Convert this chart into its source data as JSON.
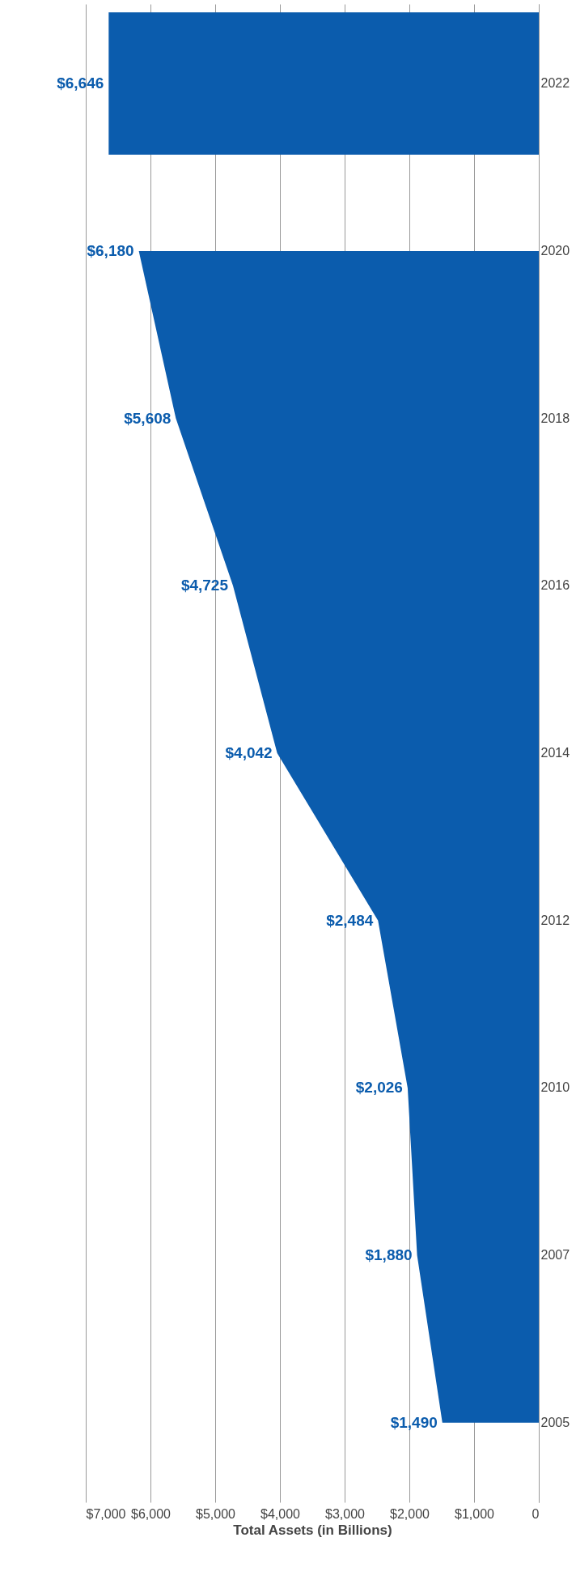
{
  "chart_data": {
    "type": "area",
    "orientation": "horizontal",
    "xlabel": "Total Assets (in Billions)",
    "categories": [
      "2022",
      "2020",
      "2018",
      "2016",
      "2014",
      "2012",
      "2010",
      "2007",
      "2005"
    ],
    "series": [
      {
        "type": "bar",
        "color": "#0b5cad",
        "values": [
          6646,
          null,
          null,
          null,
          null,
          null,
          null,
          null,
          null
        ],
        "value_labels": [
          "$6,646",
          null,
          null,
          null,
          null,
          null,
          null,
          null,
          null
        ]
      },
      {
        "color": "#0b5cad",
        "values": [
          null,
          6180,
          5608,
          4725,
          4042,
          2484,
          2026,
          1880,
          1490
        ],
        "value_labels": [
          null,
          "$6,180",
          "$5,608",
          "$4,725",
          "$4,042",
          "$2,484",
          "$2,026",
          "$1,880",
          "$1,490"
        ]
      }
    ],
    "xlim": [
      7000,
      0
    ],
    "xticks": [
      {
        "value": 0,
        "label": "0"
      },
      {
        "value": 1000,
        "label": "$1,000"
      },
      {
        "value": 2000,
        "label": "$2,000"
      },
      {
        "value": 3000,
        "label": "$3,000"
      },
      {
        "value": 4000,
        "label": "$4,000"
      },
      {
        "value": 5000,
        "label": "$5,000"
      },
      {
        "value": 6000,
        "label": "$6,000"
      },
      {
        "value": 7000,
        "label": "$7,000"
      }
    ],
    "grid": "x"
  }
}
